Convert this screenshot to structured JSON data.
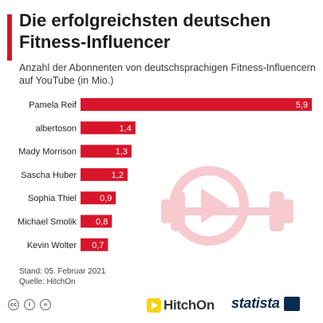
{
  "header": {
    "title": "Die erfolgreichsten deutschen Fitness-Influencer",
    "subtitle": "Anzahl der Abonnenten von deutschsprachigen Fitness-Influencern auf YouTube (in Mio.)"
  },
  "chart_data": {
    "type": "bar",
    "orientation": "horizontal",
    "categories": [
      "Pamela Reif",
      "albertoson",
      "Mady Morrison",
      "Sascha Huber",
      "Sophia Thiel",
      "Michael Smolik",
      "Kevin Wolter"
    ],
    "values": [
      5.9,
      1.4,
      1.3,
      1.2,
      0.9,
      0.8,
      0.7
    ],
    "value_labels": [
      "5,9",
      "1,4",
      "1,3",
      "1,2",
      "0,9",
      "0,8",
      "0,7"
    ],
    "title": "Die erfolgreichsten deutschen Fitness-Influencer",
    "subtitle": "Anzahl der Abonnenten von deutschsprachigen Fitness-Influencern auf YouTube (in Mio.)",
    "bar_color": "#d8152a",
    "grid": false
  },
  "footer": {
    "date": "Stand: 05. Februar 2021",
    "source": "Quelle: HitchOn",
    "icons": [
      "creative-commons-icon",
      "attribution-icon",
      "no-derivatives-icon"
    ],
    "icon_glyphs": [
      "cc",
      "i",
      "="
    ],
    "partner_logo": "HitchOn",
    "brand_logo": "statista"
  },
  "colors": {
    "accent": "#d8152a",
    "brand": "#0d2b4e",
    "partner": "#f5d200"
  }
}
